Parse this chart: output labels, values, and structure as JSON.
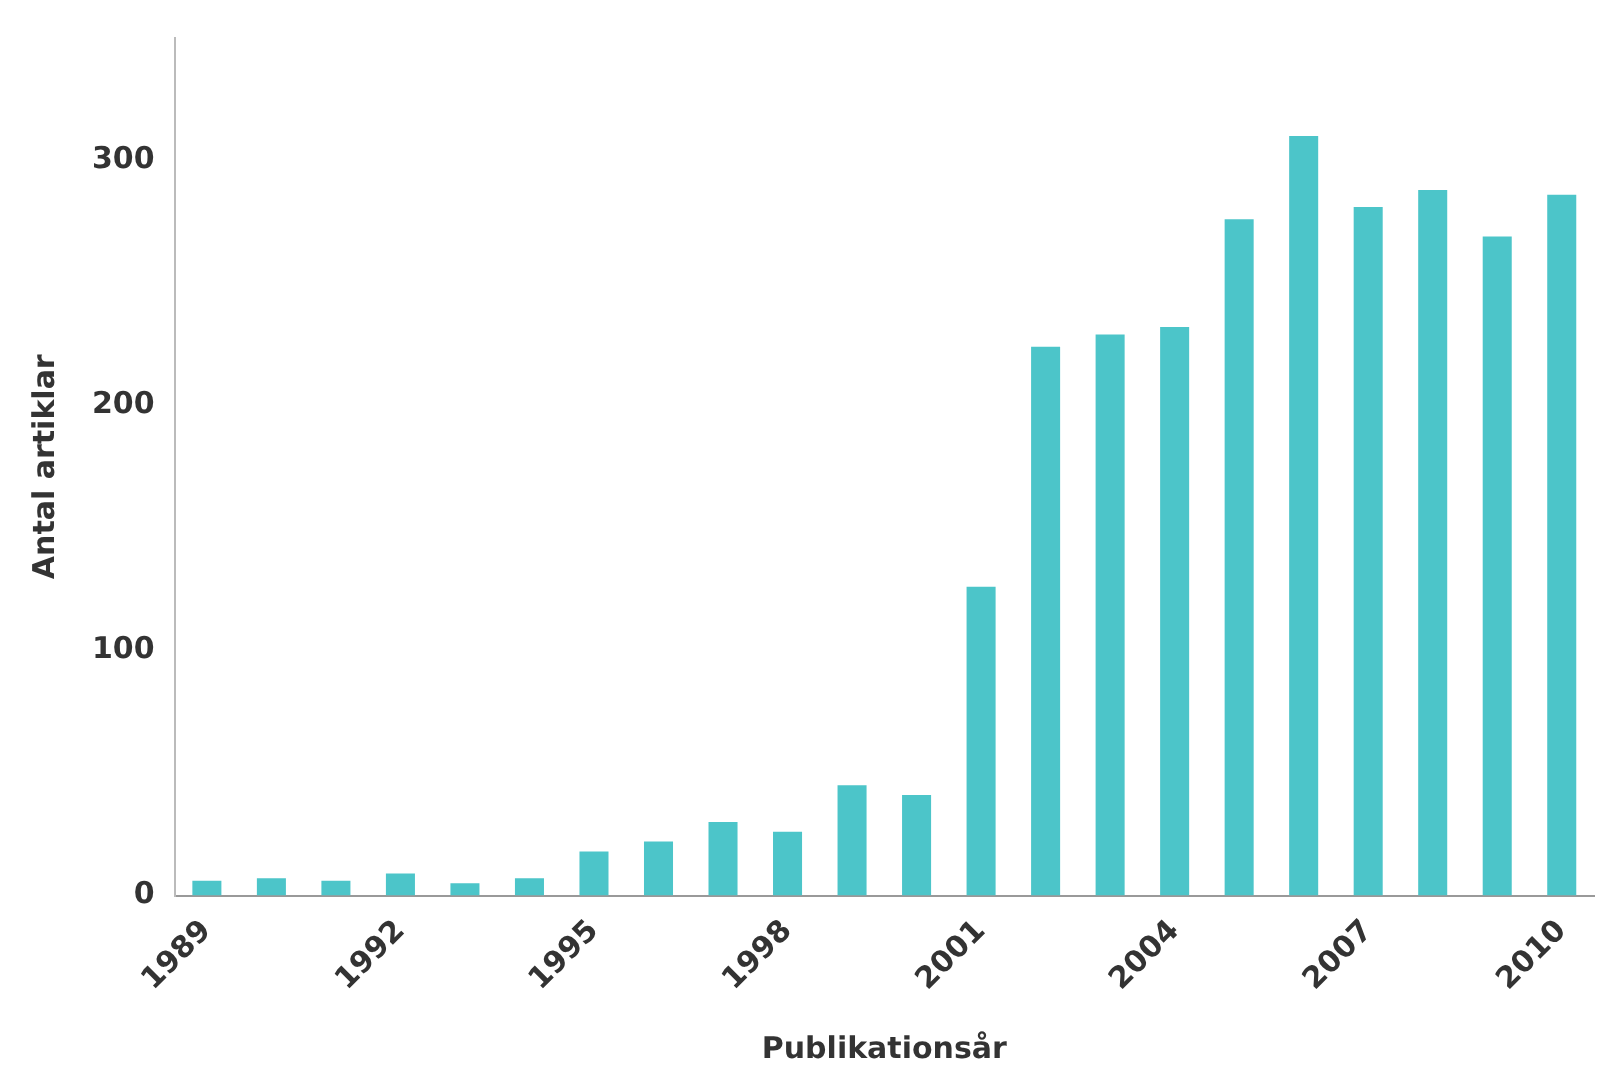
{
  "chart_data": {
    "type": "bar",
    "xlabel": "Publikationsår",
    "ylabel": "Antal artiklar",
    "categories": [
      "1989",
      null,
      null,
      "1992",
      null,
      null,
      "1995",
      null,
      null,
      "1998",
      null,
      null,
      "2001",
      null,
      null,
      "2004",
      null,
      null,
      "2007",
      null,
      null,
      "2010"
    ],
    "values": [
      6,
      7,
      6,
      9,
      5,
      7,
      18,
      22,
      30,
      26,
      45,
      41,
      126,
      224,
      229,
      232,
      276,
      310,
      281,
      288,
      269,
      286
    ],
    "color": "#4cc5c9",
    "ylim": [
      0,
      350
    ],
    "yticks": [
      0,
      100,
      200,
      300
    ],
    "grid": false
  }
}
